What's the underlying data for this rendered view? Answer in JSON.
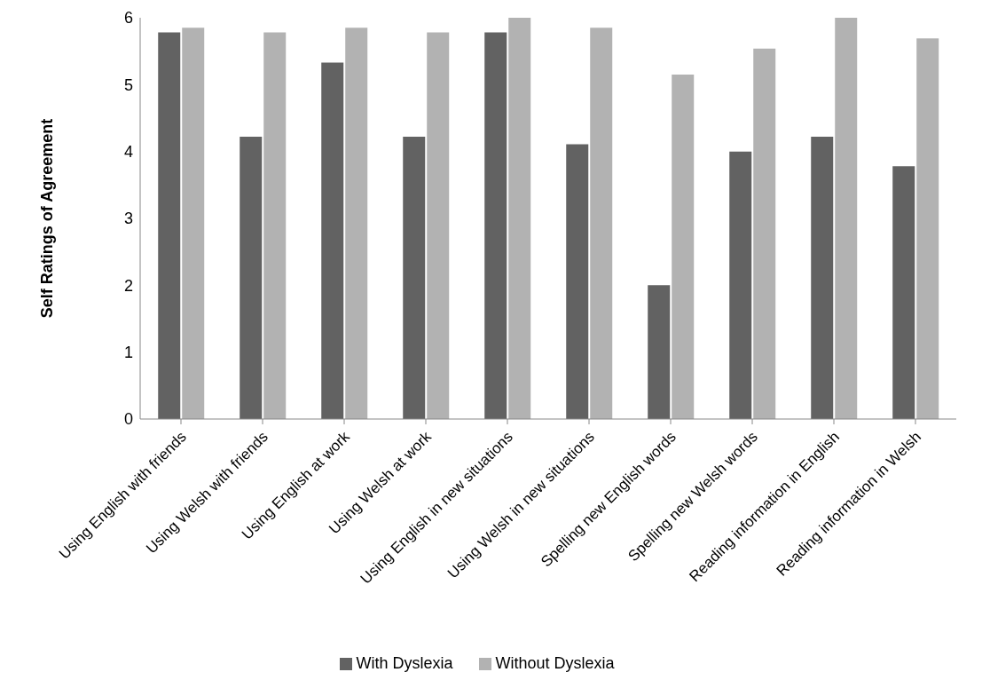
{
  "chart_data": {
    "type": "bar",
    "ylabel": "Self Ratings of Agreement",
    "categories": [
      "Using English with friends",
      "Using Welsh with friends",
      "Using English at work",
      "Using Welsh at work",
      "Using English in new situations",
      "Using Welsh in new situations",
      "Spelling new English words",
      "Spelling new Welsh words",
      "Reading information in English",
      "Reading information in Welsh"
    ],
    "series": [
      {
        "name": "With Dyslexia",
        "color": "#626262",
        "values": [
          5.78,
          4.22,
          5.33,
          4.22,
          5.78,
          4.11,
          2.0,
          4.0,
          4.22,
          3.78
        ]
      },
      {
        "name": "Without Dyslexia",
        "color": "#b2b2b2",
        "values": [
          5.85,
          5.78,
          5.85,
          5.78,
          6.0,
          5.85,
          5.15,
          5.54,
          6.0,
          5.69
        ]
      }
    ],
    "ylim": [
      0,
      6
    ],
    "yticks": [
      0,
      1,
      2,
      3,
      4,
      5,
      6
    ],
    "grid": false,
    "legend": "bottom"
  }
}
